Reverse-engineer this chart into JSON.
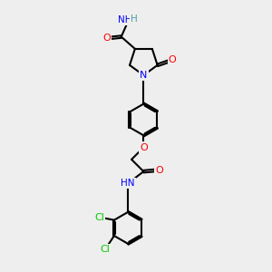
{
  "bg_color": "#eeeeee",
  "atom_colors": {
    "C": "#000000",
    "N": "#0000ff",
    "O": "#ff0000",
    "Cl": "#00cc00",
    "H": "#4aa0a0"
  },
  "bond_color": "#000000",
  "bond_width": 1.5,
  "figsize": [
    3.0,
    3.0
  ],
  "dpi": 100
}
